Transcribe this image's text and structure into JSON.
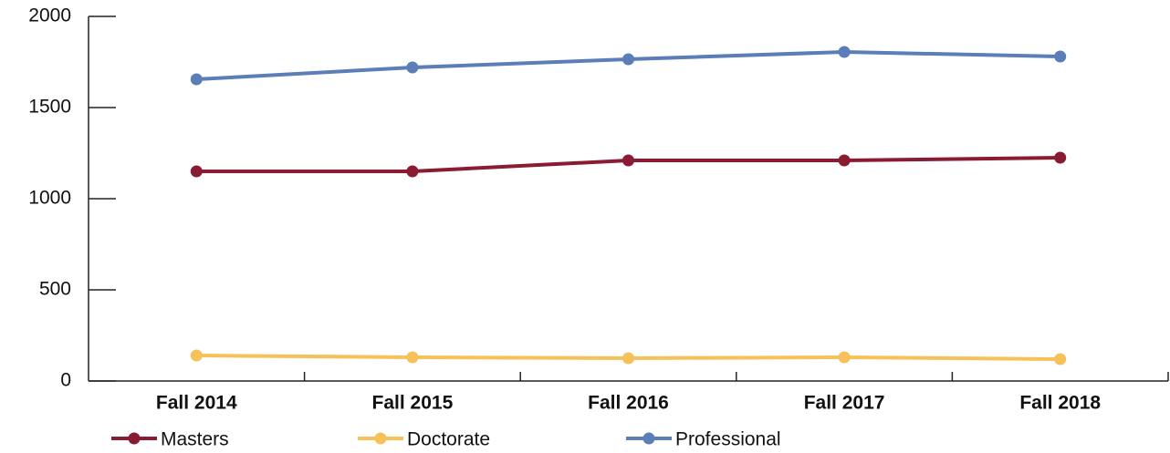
{
  "chart_data": {
    "type": "line",
    "categories": [
      "Fall 2014",
      "Fall 2015",
      "Fall 2016",
      "Fall 2017",
      "Fall 2018"
    ],
    "series": [
      {
        "name": "Masters",
        "color": "#8b1a33",
        "values": [
          1150,
          1150,
          1210,
          1210,
          1225
        ]
      },
      {
        "name": "Doctorate",
        "color": "#f7c15a",
        "values": [
          140,
          130,
          125,
          130,
          120
        ]
      },
      {
        "name": "Professional",
        "color": "#5b7db8",
        "values": [
          1655,
          1720,
          1765,
          1805,
          1780
        ]
      }
    ],
    "ylim": [
      0,
      2000
    ],
    "yticks": [
      0,
      500,
      1000,
      1500,
      2000
    ],
    "grid": false,
    "legend": "bottom"
  }
}
